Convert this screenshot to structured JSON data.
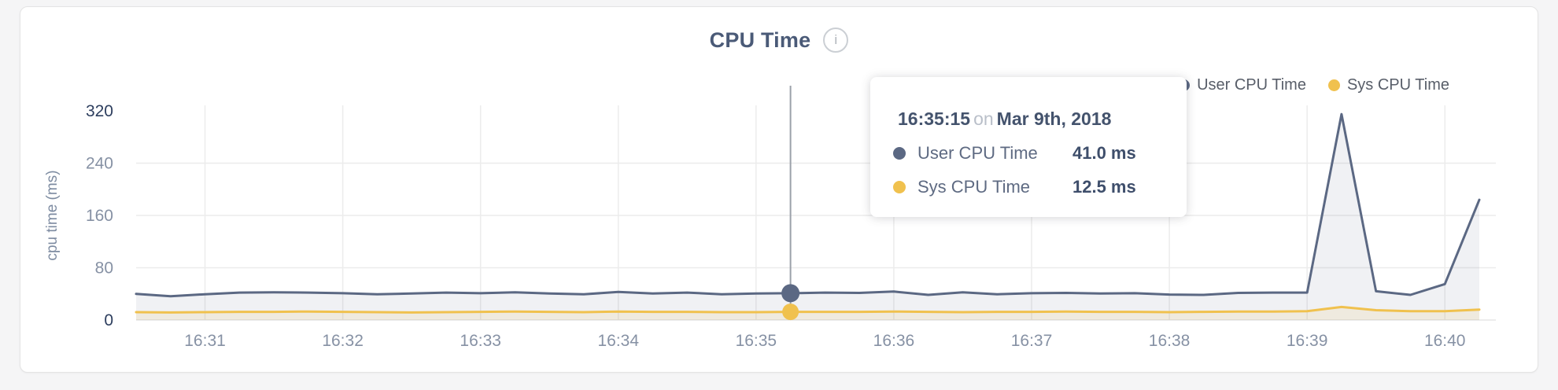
{
  "header": {
    "title": "CPU Time",
    "info_icon_glyph": "i"
  },
  "legend": {
    "items": [
      {
        "label": "User CPU Time",
        "color": "#5b6883"
      },
      {
        "label": "Sys CPU Time",
        "color": "#f0c14e"
      }
    ]
  },
  "tooltip": {
    "time": "16:35:15",
    "conjunction": "on",
    "date": "Mar 9th, 2018",
    "rows": [
      {
        "label": "User CPU Time",
        "value": "41.0 ms",
        "color": "#5b6883"
      },
      {
        "label": "Sys CPU Time",
        "value": "12.5 ms",
        "color": "#f0c14e"
      }
    ]
  },
  "chart_data": {
    "type": "line",
    "title": "CPU Time",
    "xlabel": "",
    "ylabel": "cpu time (ms)",
    "ylim": [
      0,
      320
    ],
    "y_ticks": [
      0,
      80,
      160,
      240,
      320
    ],
    "y_ticks_emphasized": [
      0,
      320
    ],
    "x_ticks": [
      "16:31",
      "16:32",
      "16:33",
      "16:34",
      "16:35",
      "16:36",
      "16:37",
      "16:38",
      "16:39",
      "16:40"
    ],
    "grid": true,
    "legend_position": "top-right",
    "x": [
      "16:30:30",
      "16:30:45",
      "16:31:00",
      "16:31:15",
      "16:31:30",
      "16:31:45",
      "16:32:00",
      "16:32:15",
      "16:32:30",
      "16:32:45",
      "16:33:00",
      "16:33:15",
      "16:33:30",
      "16:33:45",
      "16:34:00",
      "16:34:15",
      "16:34:30",
      "16:34:45",
      "16:35:00",
      "16:35:15",
      "16:35:30",
      "16:35:45",
      "16:36:00",
      "16:36:15",
      "16:36:30",
      "16:36:45",
      "16:37:00",
      "16:37:15",
      "16:37:30",
      "16:37:45",
      "16:38:00",
      "16:38:15",
      "16:38:30",
      "16:38:45",
      "16:39:00",
      "16:39:15",
      "16:39:30",
      "16:39:45",
      "16:40:00",
      "16:40:15"
    ],
    "series": [
      {
        "name": "User CPU Time",
        "color": "#5b6883",
        "fill": "rgba(91,104,131,0.09)",
        "values": [
          40,
          36.5,
          39.5,
          42,
          42.5,
          42,
          41,
          39.5,
          40.5,
          42,
          41,
          42.5,
          40.5,
          39.5,
          43,
          40.5,
          42,
          39.5,
          40.5,
          41,
          42,
          41.5,
          43.5,
          38.5,
          42.5,
          39.5,
          41,
          41.5,
          40.5,
          41,
          39,
          38.5,
          41.5,
          42,
          42,
          315,
          44,
          38.5,
          55,
          184
        ]
      },
      {
        "name": "Sys CPU Time",
        "color": "#f0c14e",
        "fill": "rgba(240,193,78,0.12)",
        "values": [
          12,
          11.5,
          12,
          12.5,
          12.5,
          13,
          12.5,
          12,
          11.5,
          12,
          12.5,
          13,
          12.5,
          12,
          13,
          12.5,
          12.5,
          12,
          12,
          12.5,
          12.5,
          12.5,
          13,
          12.5,
          12,
          12.5,
          12.5,
          13,
          12.5,
          12.5,
          12,
          12.5,
          13,
          13,
          13.5,
          20,
          15,
          13.5,
          13.5,
          16
        ]
      }
    ],
    "hover": {
      "x": "16:35:15",
      "index": 19,
      "values": [
        {
          "series": "User CPU Time",
          "value": 41.0
        },
        {
          "series": "Sys CPU Time",
          "value": 12.5
        }
      ]
    }
  },
  "colors": {
    "grid": "#ececec",
    "baseline": "#e6e6e6",
    "tick_label": "#8691a4",
    "tick_label_emphasized": "#2d3e5e",
    "axis_title": "#7d8ba1",
    "crosshair": "#9ba1aa"
  }
}
